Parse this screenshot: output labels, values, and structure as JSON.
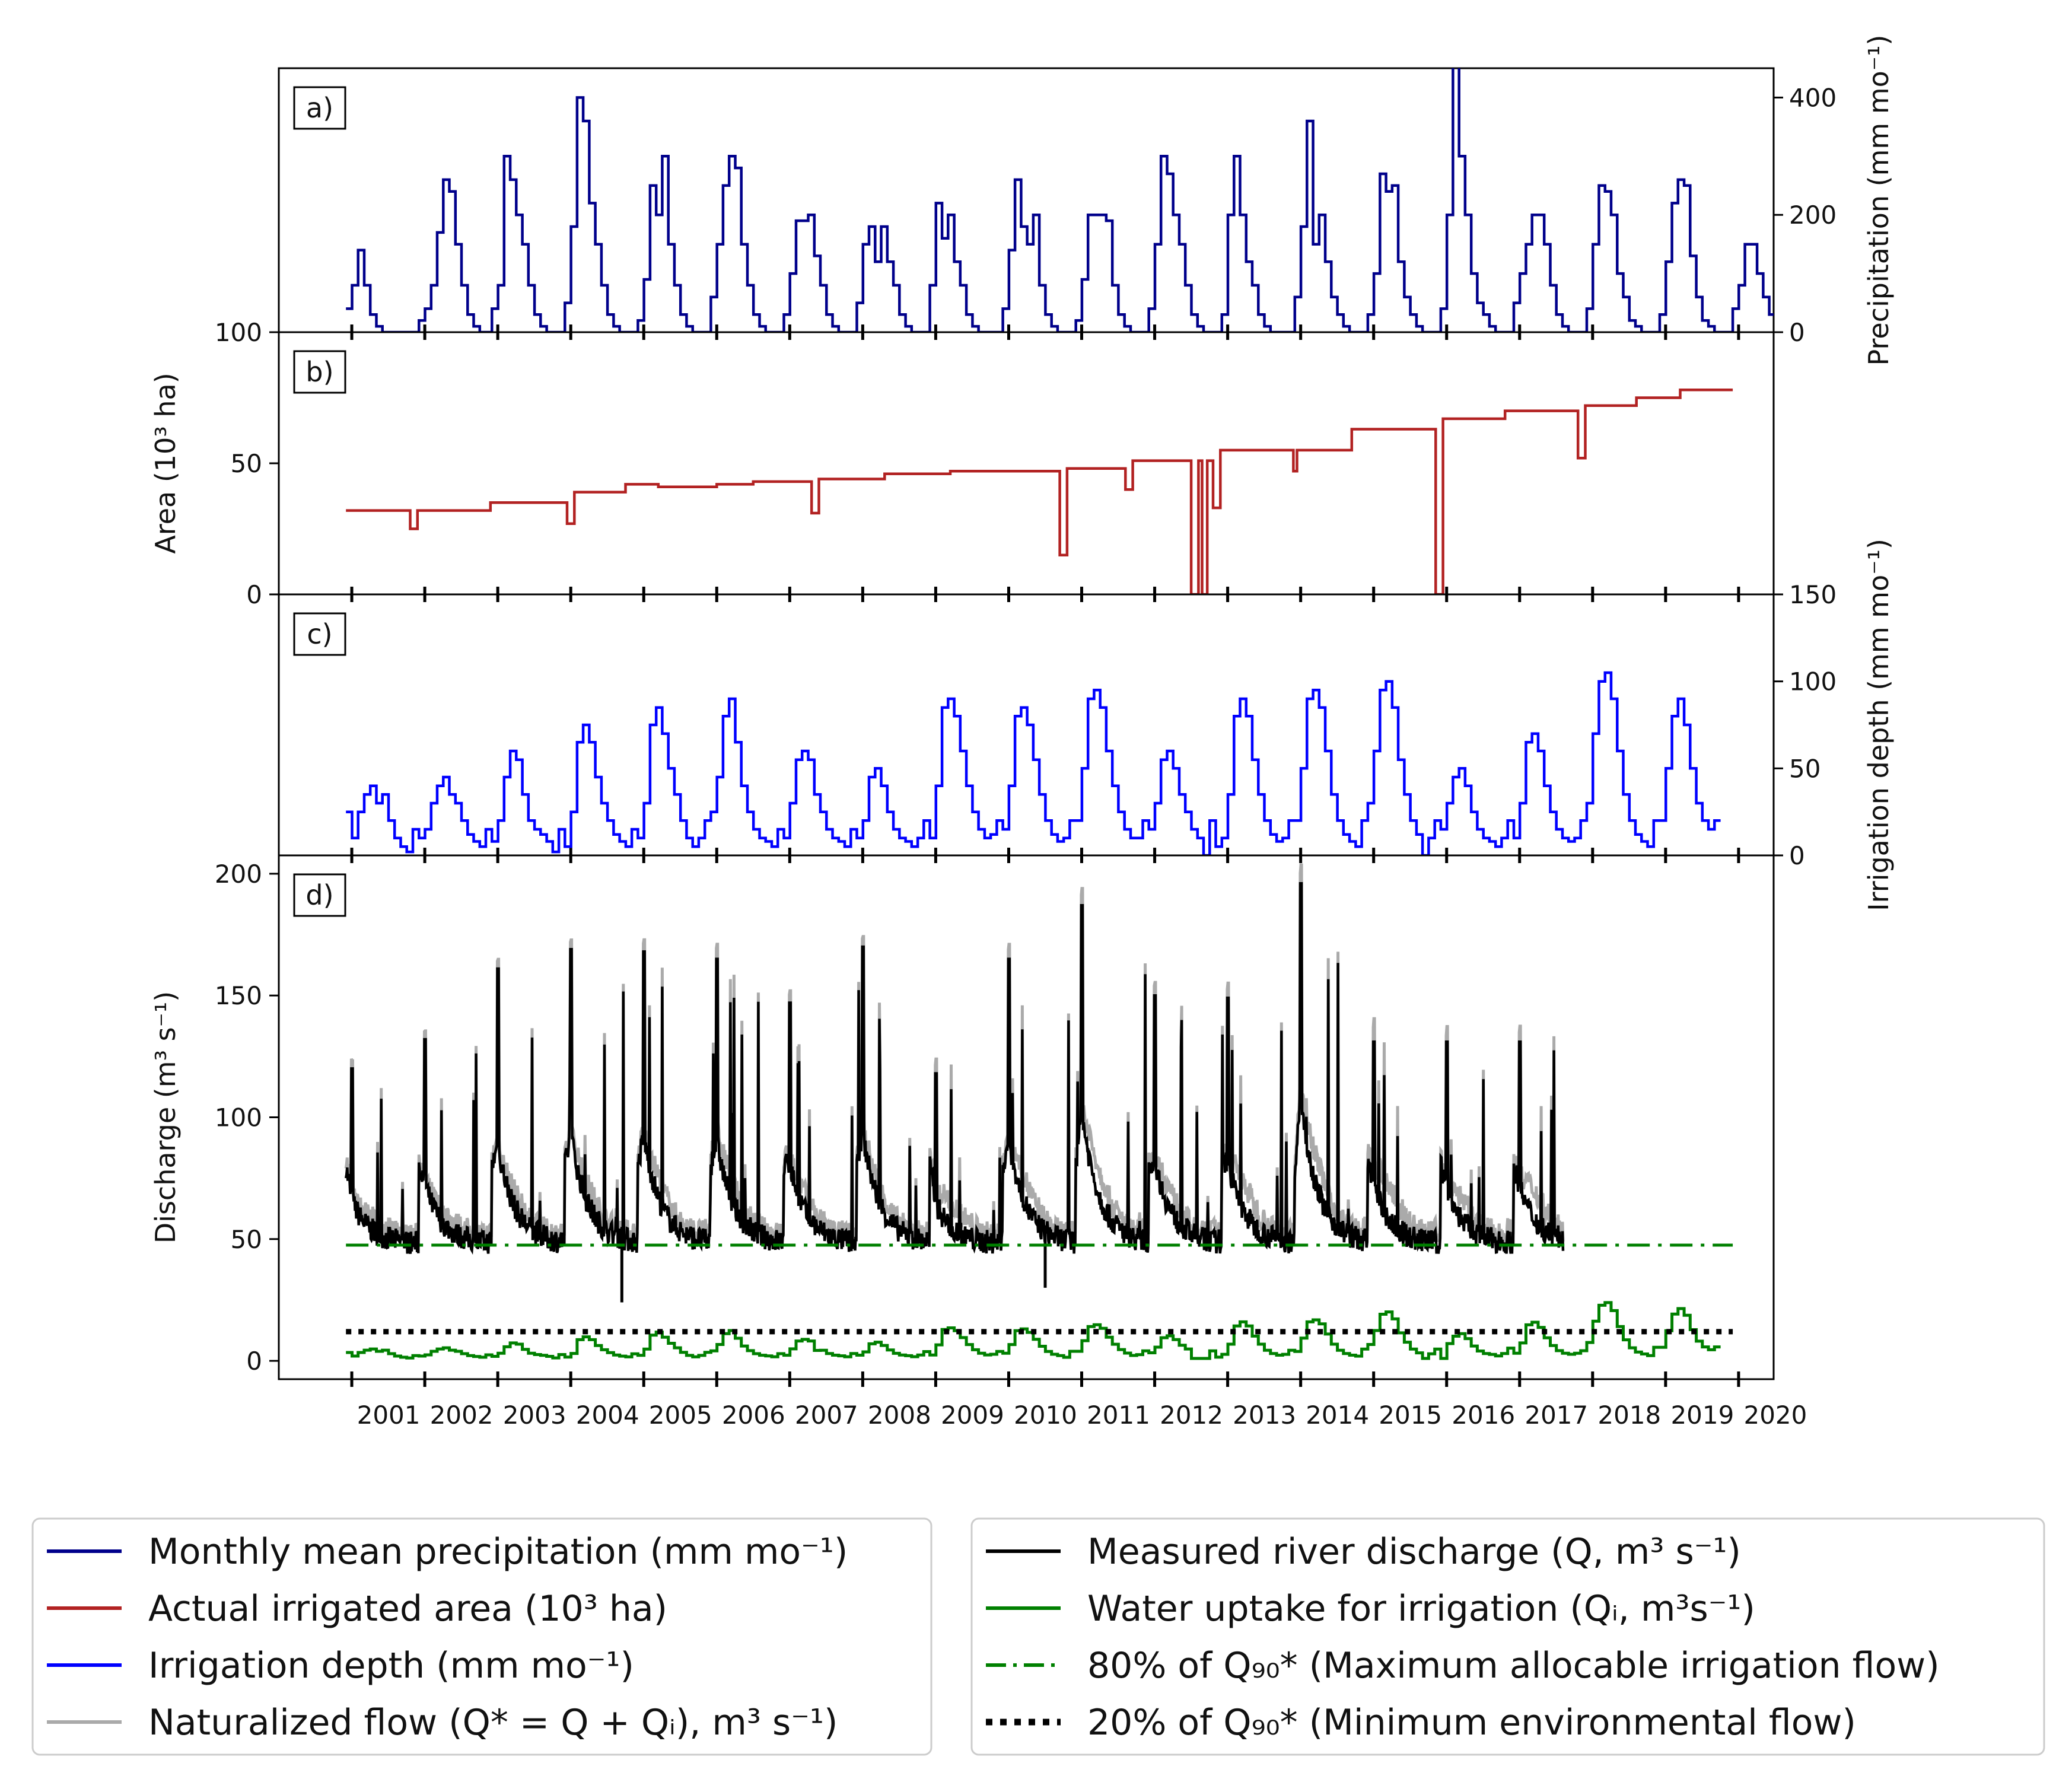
{
  "chart_data": [
    {
      "panel": "a)",
      "type": "line",
      "drawstyle": "steps",
      "series": [
        {
          "name": "Monthly mean precipitation (mm mo⁻¹)",
          "color": "#00008b"
        }
      ],
      "ylabel": "Precipitation (mm mo⁻¹)",
      "yaxis_side": "right",
      "ylim": [
        0,
        450
      ],
      "yticks": [
        0,
        200,
        400
      ],
      "x_start": 2000.92,
      "x_end": 2019.92,
      "monthly_values": [
        40,
        80,
        140,
        80,
        30,
        10,
        0,
        0,
        0,
        0,
        0,
        0,
        20,
        40,
        80,
        170,
        260,
        240,
        150,
        80,
        30,
        10,
        0,
        0,
        40,
        80,
        300,
        260,
        200,
        150,
        80,
        30,
        10,
        0,
        0,
        0,
        50,
        180,
        400,
        360,
        220,
        150,
        80,
        30,
        10,
        0,
        0,
        0,
        20,
        90,
        250,
        200,
        300,
        150,
        80,
        30,
        10,
        0,
        0,
        0,
        60,
        150,
        250,
        300,
        280,
        150,
        80,
        30,
        10,
        0,
        0,
        0,
        30,
        100,
        190,
        190,
        200,
        130,
        80,
        30,
        10,
        0,
        0,
        0,
        50,
        150,
        180,
        120,
        180,
        120,
        80,
        30,
        10,
        0,
        0,
        0,
        80,
        220,
        160,
        200,
        120,
        80,
        30,
        10,
        0,
        0,
        0,
        0,
        40,
        140,
        260,
        180,
        150,
        200,
        80,
        30,
        10,
        0,
        0,
        0,
        20,
        90,
        200,
        200,
        200,
        190,
        80,
        30,
        10,
        0,
        0,
        0,
        40,
        150,
        300,
        270,
        200,
        150,
        80,
        30,
        10,
        0,
        0,
        0,
        30,
        200,
        300,
        200,
        120,
        80,
        30,
        10,
        0,
        0,
        0,
        0,
        60,
        180,
        360,
        150,
        200,
        120,
        60,
        30,
        10,
        0,
        0,
        0,
        30,
        100,
        270,
        240,
        250,
        120,
        60,
        30,
        10,
        0,
        0,
        0,
        40,
        200,
        460,
        300,
        200,
        100,
        50,
        30,
        10,
        0,
        0,
        0,
        50,
        100,
        150,
        200,
        200,
        150,
        80,
        30,
        10,
        0,
        0,
        0,
        40,
        150,
        250,
        240,
        200,
        100,
        60,
        20,
        10,
        0,
        0,
        0,
        30,
        120,
        220,
        260,
        250,
        130,
        60,
        20,
        10,
        0,
        0,
        0,
        40,
        80,
        150,
        150,
        100,
        60,
        30,
        10,
        0,
        0
      ]
    },
    {
      "panel": "b)",
      "type": "line",
      "drawstyle": "steps",
      "series": [
        {
          "name": "Actual irrigated area (10³ ha)",
          "color": "#b22222"
        }
      ],
      "ylabel": "Area (10³ ha)",
      "yaxis_side": "left",
      "ylim": [
        0,
        100
      ],
      "yticks": [
        0,
        50,
        100
      ],
      "steps": [
        [
          2000.92,
          32
        ],
        [
          2001.8,
          25
        ],
        [
          2001.9,
          32
        ],
        [
          2002.9,
          35
        ],
        [
          2003.95,
          27
        ],
        [
          2004.05,
          39
        ],
        [
          2004.75,
          42
        ],
        [
          2005.2,
          41
        ],
        [
          2006.0,
          42
        ],
        [
          2006.5,
          43
        ],
        [
          2007.3,
          31
        ],
        [
          2007.4,
          44
        ],
        [
          2008.3,
          46
        ],
        [
          2009.2,
          47
        ],
        [
          2010.2,
          47
        ],
        [
          2010.7,
          15
        ],
        [
          2010.8,
          48
        ],
        [
          2011.6,
          40
        ],
        [
          2011.7,
          51
        ],
        [
          2012.5,
          0
        ],
        [
          2012.6,
          51
        ],
        [
          2012.65,
          0
        ],
        [
          2012.72,
          51
        ],
        [
          2012.8,
          33
        ],
        [
          2012.9,
          55
        ],
        [
          2013.9,
          47
        ],
        [
          2013.95,
          55
        ],
        [
          2014.7,
          63
        ],
        [
          2015.85,
          0
        ],
        [
          2015.95,
          67
        ],
        [
          2016.8,
          70
        ],
        [
          2017.8,
          52
        ],
        [
          2017.9,
          72
        ],
        [
          2018.6,
          75
        ],
        [
          2019.2,
          78
        ],
        [
          2019.92,
          78
        ]
      ]
    },
    {
      "panel": "c)",
      "type": "line",
      "drawstyle": "steps",
      "series": [
        {
          "name": "Irrigation depth (mm mo⁻¹)",
          "color": "#0000ff"
        }
      ],
      "ylabel": "Irrigation depth (mm mo⁻¹)",
      "yaxis_side": "right",
      "ylim": [
        0,
        150
      ],
      "yticks": [
        0,
        50,
        100,
        150
      ],
      "monthly_values": [
        25,
        10,
        25,
        35,
        40,
        30,
        35,
        20,
        10,
        5,
        2,
        15,
        10,
        15,
        30,
        40,
        45,
        35,
        30,
        20,
        12,
        8,
        5,
        15,
        8,
        20,
        45,
        60,
        55,
        35,
        20,
        15,
        12,
        8,
        2,
        15,
        5,
        25,
        65,
        75,
        65,
        45,
        30,
        20,
        12,
        8,
        5,
        15,
        10,
        30,
        75,
        85,
        70,
        50,
        35,
        20,
        10,
        5,
        10,
        20,
        25,
        45,
        80,
        90,
        65,
        40,
        25,
        15,
        10,
        8,
        5,
        15,
        10,
        30,
        55,
        60,
        55,
        35,
        25,
        15,
        10,
        8,
        5,
        15,
        10,
        20,
        45,
        50,
        40,
        25,
        15,
        10,
        8,
        5,
        10,
        20,
        10,
        40,
        85,
        90,
        80,
        60,
        40,
        25,
        15,
        10,
        12,
        20,
        15,
        40,
        80,
        85,
        75,
        55,
        35,
        20,
        12,
        8,
        10,
        20,
        20,
        50,
        90,
        95,
        85,
        60,
        40,
        25,
        15,
        10,
        10,
        20,
        15,
        30,
        55,
        60,
        50,
        35,
        25,
        15,
        10,
        0,
        20,
        5,
        10,
        35,
        80,
        90,
        80,
        55,
        35,
        20,
        12,
        8,
        10,
        20,
        20,
        50,
        90,
        95,
        85,
        60,
        35,
        20,
        12,
        8,
        5,
        20,
        30,
        60,
        95,
        100,
        85,
        55,
        35,
        20,
        12,
        0,
        10,
        20,
        15,
        30,
        45,
        50,
        40,
        25,
        15,
        10,
        8,
        5,
        10,
        20,
        10,
        30,
        65,
        70,
        60,
        40,
        25,
        15,
        10,
        8,
        10,
        20,
        30,
        70,
        100,
        105,
        90,
        60,
        35,
        20,
        12,
        8,
        5,
        20,
        20,
        50,
        80,
        90,
        75,
        50,
        30,
        20,
        15,
        20
      ]
    },
    {
      "panel": "d)",
      "type": "line",
      "ylabel": "Discharge (m³ s⁻¹)",
      "yaxis_side": "left",
      "ylim": [
        0,
        200
      ],
      "yticks": [
        0,
        50,
        100,
        150,
        200
      ],
      "x_tick_labels": [
        "2001",
        "2002",
        "2003",
        "2004",
        "2005",
        "2006",
        "2007",
        "2008",
        "2009",
        "2010",
        "2011",
        "2012",
        "2013",
        "2014",
        "2015",
        "2016",
        "2017",
        "2018",
        "2019",
        "2020"
      ],
      "measured_discharge_end": 2017.6,
      "annual_peaks": [
        120,
        132,
        161,
        169,
        168,
        165,
        147,
        170,
        118,
        165,
        187,
        150,
        149,
        196,
        131
      ],
      "q90_80pct": 47.5,
      "q90_20pct": 12,
      "series": [
        {
          "name": "Measured river discharge (Q, m³ s⁻¹)",
          "color": "#000000",
          "style": "solid"
        },
        {
          "name": "Water uptake for irrigation (Qᵢ, m³s⁻¹)",
          "color": "#008000",
          "style": "solid"
        },
        {
          "name": "80% of  Q₉₀* (Maximum allocable irrigation flow)",
          "color": "#008000",
          "style": "dash-dot"
        },
        {
          "name": "20% of  Q₉₀* (Minimum environmental flow)",
          "color": "#000000",
          "style": "dotted"
        },
        {
          "name": "Naturalized flow (Q* = Q + Qᵢ), m³ s⁻¹)",
          "color": "#aaaaaa",
          "style": "solid"
        }
      ]
    }
  ],
  "legend": {
    "left": [
      {
        "label": "Monthly mean precipitation (mm mo⁻¹)",
        "color": "#00008b",
        "style": "solid"
      },
      {
        "label": "Actual irrigated area (10³ ha)",
        "color": "#b22222",
        "style": "solid"
      },
      {
        "label": "Irrigation depth (mm mo⁻¹)",
        "color": "#0000ff",
        "style": "solid"
      },
      {
        "label": "Naturalized flow (Q* = Q + Qᵢ), m³ s⁻¹)",
        "color": "#aaaaaa",
        "style": "solid"
      }
    ],
    "right": [
      {
        "label": "Measured river discharge (Q, m³ s⁻¹)",
        "color": "#000000",
        "style": "solid"
      },
      {
        "label": "Water uptake for irrigation (Qᵢ, m³s⁻¹)",
        "color": "#008000",
        "style": "solid"
      },
      {
        "label": "80% of  Q₉₀* (Maximum allocable irrigation flow)",
        "color": "#008000",
        "style": "dashdot"
      },
      {
        "label": "20% of  Q₉₀* (Minimum environmental flow)",
        "color": "#000000",
        "style": "dotted"
      }
    ]
  }
}
